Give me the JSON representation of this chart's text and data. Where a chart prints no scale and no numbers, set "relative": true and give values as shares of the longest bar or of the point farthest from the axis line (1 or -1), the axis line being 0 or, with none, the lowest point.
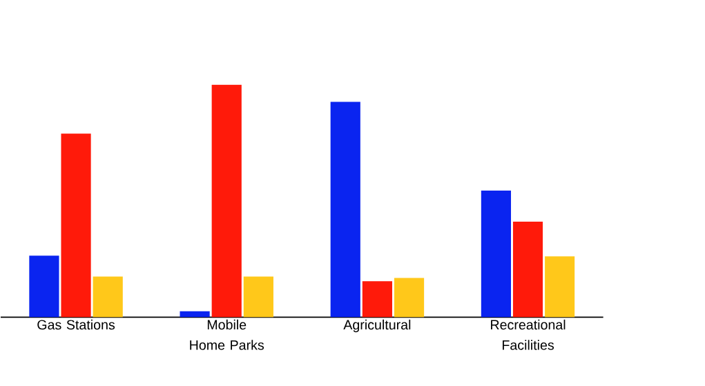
{
  "chart_data": {
    "type": "bar",
    "relative": true,
    "categories": [
      "Gas Stations",
      "Mobile Home Parks",
      "Agricultural",
      "Recreational Facilities"
    ],
    "series": [
      {
        "color": "#0a24f0",
        "values": [
          0.265,
          0.026,
          0.927,
          0.545
        ]
      },
      {
        "color": "#ff1a0a",
        "values": [
          0.79,
          1,
          0.155,
          0.411
        ]
      },
      {
        "color": "#ffc81a",
        "values": [
          0.175,
          0.175,
          0.169,
          0.262
        ]
      }
    ]
  }
}
